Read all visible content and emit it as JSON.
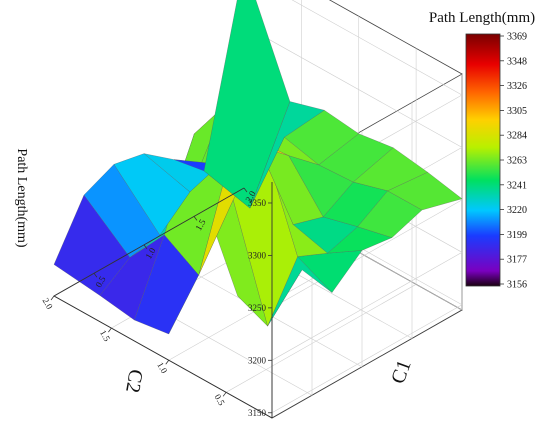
{
  "chart_data": {
    "type": "surface3d",
    "title": "",
    "colorbar_title": "Path Length(mm)",
    "colorbar_ticks": [
      "3369",
      "3348",
      "3326",
      "3305",
      "3284",
      "3263",
      "3241",
      "3220",
      "3199",
      "3177",
      "3156"
    ],
    "colorbar_range": [
      3156,
      3369
    ],
    "zlabel": "Path Length(mm)",
    "xlabel": "C2",
    "ylabel": "C1",
    "x_ticks": [
      "0.5",
      "1.0",
      "1.5",
      "2.0"
    ],
    "y_ticks": [
      "0.5",
      "1.0",
      "1.5",
      "2.0"
    ],
    "z_ticks": [
      "3150",
      "3200",
      "3250",
      "3300",
      "3350"
    ],
    "x_range": [
      0.1,
      2.0
    ],
    "y_range": [
      0.1,
      2.0
    ],
    "z_range": [
      3145,
      3370
    ],
    "grid": true,
    "legend_position": "right",
    "c2_values": [
      0.1,
      0.4,
      0.7,
      1.0,
      1.3,
      1.6,
      2.0
    ],
    "c1_values": [
      0.1,
      0.4,
      0.7,
      1.0,
      1.3,
      1.6,
      2.0
    ],
    "z_values": [
      [
        3245,
        3270,
        3232,
        3256,
        3252,
        3262,
        3251
      ],
      [
        3243,
        3198,
        3248,
        3235,
        3244,
        3262,
        3258
      ],
      [
        3318,
        3300,
        3338,
        3244,
        3235,
        3252,
        3263
      ],
      [
        3170,
        3210,
        3300,
        3300,
        3275,
        3250,
        3258
      ],
      [
        3165,
        3230,
        3310,
        3320,
        3272,
        3258,
        3262
      ],
      [
        3170,
        3190,
        3195,
        3220,
        3230,
        3172,
        3252
      ],
      [
        3175,
        3225,
        3238,
        3232,
        3210,
        3183,
        3358
      ]
    ]
  }
}
